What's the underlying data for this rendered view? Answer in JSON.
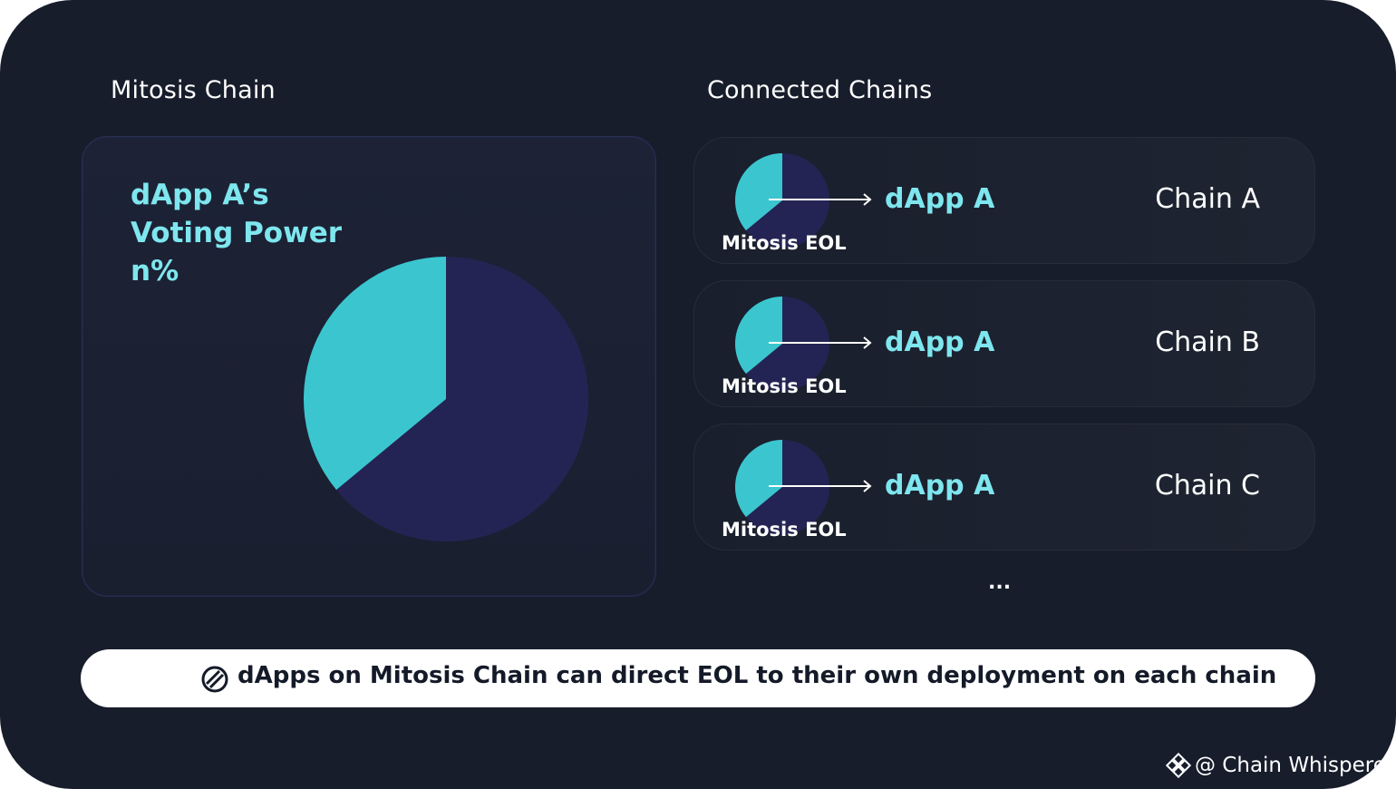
{
  "colors": {
    "background": "#171d2b",
    "accent_teal": "#3bc6cf",
    "pie_dark": "#242454",
    "label_teal": "#7ee6ee"
  },
  "left": {
    "heading": "Mitosis Chain",
    "voting_power": [
      "dApp A’s",
      "Voting Power",
      "n%"
    ],
    "pie": {
      "teal_share": 0.36
    }
  },
  "right": {
    "heading": "Connected Chains",
    "rows": [
      {
        "source": "Mitosis EOL",
        "target": "dApp A",
        "chain": "Chain A",
        "teal_share": 0.36
      },
      {
        "source": "Mitosis EOL",
        "target": "dApp A",
        "chain": "Chain B",
        "teal_share": 0.36
      },
      {
        "source": "Mitosis EOL",
        "target": "dApp A",
        "chain": "Chain C",
        "teal_share": 0.36
      }
    ],
    "more": "..."
  },
  "banner": {
    "icon": "mitosis-logo-icon",
    "text": "dApps on Mitosis Chain can direct EOL to their own deployment on each chain"
  },
  "watermark": {
    "icon": "binance-diamond-icon",
    "text": "@ Chain Whisperer"
  }
}
